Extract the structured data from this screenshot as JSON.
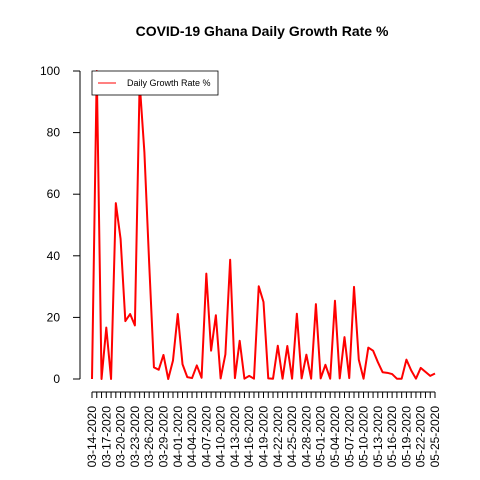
{
  "chart_data": {
    "type": "line",
    "title": "COVID-19 Ghana Daily Growth Rate %",
    "xlabel": "",
    "ylabel": "",
    "grid": false,
    "legend_position": "top-left",
    "ylim": [
      0,
      100
    ],
    "y_ticks": [
      0,
      20,
      40,
      60,
      80,
      100
    ],
    "x_tick_labels": [
      "03-14-2020",
      "03-17-2020",
      "03-20-2020",
      "03-23-2020",
      "03-26-2020",
      "03-29-2020",
      "04-01-2020",
      "04-04-2020",
      "04-07-2020",
      "04-10-2020",
      "04-13-2020",
      "04-16-2020",
      "04-19-2020",
      "04-22-2020",
      "04-25-2020",
      "04-28-2020",
      "05-01-2020",
      "05-04-2020",
      "05-07-2020",
      "05-10-2020",
      "05-13-2020",
      "05-16-2020",
      "05-19-2020",
      "05-22-2020",
      "05-25-2020"
    ],
    "x_start": "2020-03-14",
    "series": [
      {
        "name": "Daily Growth Rate %",
        "color": "#ff0000",
        "values": [
          0,
          100,
          0,
          16.7,
          0,
          57.1,
          45.5,
          18.8,
          21.1,
          17.4,
          96.3,
          73.6,
          37.6,
          3.8,
          3,
          7.8,
          0,
          6,
          21.1,
          4.8,
          0.6,
          0.3,
          4.4,
          0.4,
          34.2,
          9.2,
          20.7,
          0.2,
          8,
          38.7,
          0.3,
          12.4,
          0.1,
          1,
          0.1,
          30.1,
          25,
          0.2,
          0.1,
          10.8,
          0.1,
          10.7,
          0.1,
          21.2,
          0.2,
          7.9,
          0.1,
          24.3,
          0.2,
          4.6,
          0.1,
          25.4,
          0.2,
          13.6,
          0.3,
          29.9,
          6.3,
          0.1,
          10.2,
          9.2,
          5.5,
          2.2,
          2,
          1.6,
          0.1,
          0.1,
          6.3,
          2.8,
          0.1,
          3.6,
          2.3,
          1,
          1.8
        ]
      }
    ]
  }
}
